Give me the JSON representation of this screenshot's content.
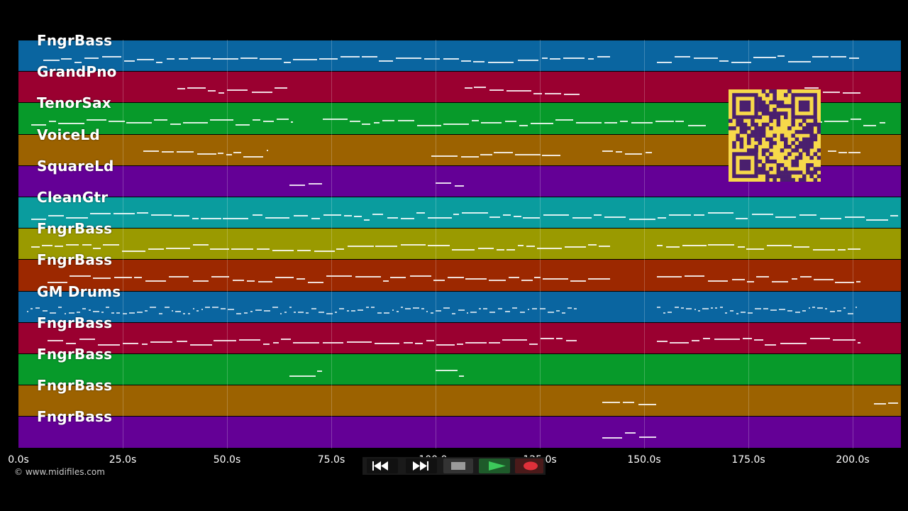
{
  "tracks": [
    {
      "label": "FngrBass",
      "color": "#0a65a0"
    },
    {
      "label": "GrandPno",
      "color": "#9a0030"
    },
    {
      "label": "TenorSax",
      "color": "#079a2a"
    },
    {
      "label": "VoiceLd",
      "color": "#9c6200"
    },
    {
      "label": "SquareLd",
      "color": "#640096"
    },
    {
      "label": "CleanGtr",
      "color": "#0a9c9e"
    },
    {
      "label": "FngrBass",
      "color": "#9a9a00"
    },
    {
      "label": "FngrBass",
      "color": "#9c2800"
    },
    {
      "label": "GM Drums",
      "color": "#0a65a0"
    },
    {
      "label": "FngrBass",
      "color": "#9a0030"
    },
    {
      "label": "FngrBass",
      "color": "#079a2a"
    },
    {
      "label": "FngrBass",
      "color": "#9c6200"
    },
    {
      "label": "FngrBass",
      "color": "#640096"
    }
  ],
  "timeline": {
    "ticks": [
      "0.0s",
      "25.0s",
      "50.0s",
      "75.0s",
      "100.0s",
      "125.0s",
      "150.0s",
      "175.0s",
      "200.0s"
    ],
    "tick_values": [
      0,
      25,
      50,
      75,
      100,
      125,
      150,
      175,
      200
    ],
    "max_seconds": 211.5
  },
  "copyright": "© www.midifiles.com",
  "transport": {
    "buttons": [
      {
        "name": "rewind-button",
        "icon": "rewind-icon"
      },
      {
        "name": "fast-forward-button",
        "icon": "fast-forward-icon"
      },
      {
        "name": "stop-button",
        "icon": "stop-icon"
      },
      {
        "name": "play-button",
        "icon": "play-icon"
      },
      {
        "name": "record-button",
        "icon": "record-icon"
      }
    ]
  },
  "qr_code": {
    "icon": "qr-code-icon",
    "background": "#f7d94a",
    "foreground": "#4a1f6e"
  }
}
